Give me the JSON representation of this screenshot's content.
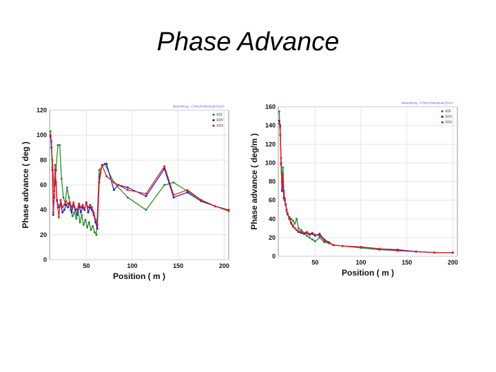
{
  "slide": {
    "title": "Phase Advance"
  },
  "chart_data": [
    {
      "type": "line",
      "id": "left",
      "title": "",
      "header_note": "Beam/Ring - CTRL(FODO)Lat(?)ACF",
      "xlabel": "Position ( m )",
      "ylabel": "Phase advance ( deg )",
      "xlim": [
        10,
        205
      ],
      "ylim": [
        0,
        120
      ],
      "xticks": [
        50,
        100,
        150,
        200
      ],
      "yticks": [
        0,
        20,
        40,
        60,
        80,
        100,
        120
      ],
      "grid": true,
      "legend_position": "top-right",
      "series": [
        {
          "name": "XDI",
          "color": "#2a8a2a",
          "x": [
            11,
            13,
            15,
            17,
            19,
            21,
            23,
            25,
            27,
            29,
            31,
            33,
            35,
            37,
            39,
            41,
            43,
            45,
            47,
            49,
            51,
            53,
            55,
            57,
            59,
            61,
            64,
            70,
            80,
            95,
            115,
            135,
            145,
            160,
            175,
            190,
            205
          ],
          "y": [
            103,
            80,
            55,
            72,
            92,
            92,
            65,
            50,
            45,
            58,
            50,
            40,
            35,
            38,
            33,
            40,
            30,
            36,
            28,
            32,
            26,
            30,
            24,
            27,
            22,
            20,
            72,
            77,
            62,
            50,
            40,
            60,
            62,
            55,
            48,
            43,
            39
          ]
        },
        {
          "name": "XDV",
          "color": "#2020c0",
          "x": [
            11,
            12,
            13,
            14,
            15,
            16,
            17,
            18,
            19,
            20,
            22,
            24,
            26,
            28,
            30,
            32,
            34,
            36,
            38,
            40,
            42,
            44,
            46,
            48,
            50,
            52,
            54,
            56,
            58,
            60,
            62,
            64,
            67,
            72,
            80,
            85,
            95,
            115,
            135,
            145,
            160,
            175,
            190,
            205
          ],
          "y": [
            99,
            90,
            72,
            36,
            50,
            72,
            62,
            48,
            44,
            42,
            45,
            38,
            40,
            44,
            42,
            46,
            38,
            44,
            40,
            36,
            44,
            38,
            42,
            40,
            46,
            38,
            42,
            40,
            36,
            30,
            25,
            62,
            76,
            77,
            56,
            60,
            58,
            51,
            73,
            50,
            54,
            47,
            43,
            40
          ]
        },
        {
          "name": "XDX",
          "color": "#e02020",
          "x": [
            11,
            12,
            13,
            14,
            15,
            16,
            17,
            18,
            19,
            20,
            22,
            24,
            26,
            28,
            30,
            32,
            34,
            36,
            38,
            40,
            42,
            44,
            46,
            48,
            50,
            52,
            54,
            56,
            58,
            60,
            62,
            64,
            67,
            72,
            80,
            85,
            95,
            115,
            135,
            145,
            160,
            175,
            190,
            205
          ],
          "y": [
            100,
            95,
            74,
            38,
            52,
            76,
            60,
            47,
            42,
            34,
            48,
            42,
            44,
            47,
            45,
            46,
            42,
            46,
            41,
            40,
            45,
            42,
            44,
            41,
            45,
            42,
            44,
            42,
            38,
            32,
            28,
            66,
            76,
            67,
            62,
            60,
            56,
            53,
            75,
            52,
            56,
            48,
            43,
            40
          ]
        }
      ]
    },
    {
      "type": "line",
      "id": "right",
      "title": "",
      "header_note": "Beam/Ring - CTRL(FODO)Lat(?)ACF",
      "xlabel": "Position ( m )",
      "ylabel": "Phase advance ( deg/m )",
      "xlim": [
        10,
        205
      ],
      "ylim": [
        0,
        160
      ],
      "xticks": [
        50,
        100,
        150,
        200
      ],
      "yticks": [
        0,
        20,
        40,
        60,
        80,
        100,
        120,
        140,
        160
      ],
      "grid": true,
      "legend_position": "top-right",
      "series": [
        {
          "name": "XDI",
          "color": "#2a8a2a",
          "x": [
            11,
            12,
            13,
            14,
            15,
            16,
            17,
            18,
            19,
            20,
            22,
            24,
            26,
            28,
            30,
            32,
            35,
            38,
            41,
            44,
            47,
            50,
            55,
            60,
            65,
            70,
            80,
            100,
            120,
            140,
            160,
            180,
            200
          ],
          "y": [
            155,
            130,
            105,
            80,
            95,
            70,
            60,
            55,
            48,
            45,
            42,
            40,
            38,
            35,
            40,
            30,
            28,
            25,
            22,
            20,
            18,
            16,
            20,
            15,
            14,
            12,
            11,
            9,
            7,
            6,
            5,
            4,
            4
          ]
        },
        {
          "name": "XDV",
          "color": "#2020c0",
          "x": [
            11,
            12,
            13,
            14,
            15,
            16,
            17,
            18,
            19,
            20,
            22,
            24,
            26,
            28,
            30,
            32,
            35,
            38,
            41,
            44,
            47,
            50,
            55,
            60,
            65,
            70,
            80,
            100,
            120,
            140,
            160,
            180,
            200
          ],
          "y": [
            145,
            140,
            100,
            70,
            80,
            62,
            60,
            55,
            50,
            45,
            40,
            35,
            32,
            30,
            28,
            26,
            25,
            24,
            25,
            23,
            24,
            22,
            24,
            18,
            15,
            12,
            11,
            10,
            8,
            7,
            5,
            4,
            4
          ]
        },
        {
          "name": "XDX",
          "color": "#e02020",
          "x": [
            11,
            12,
            13,
            14,
            15,
            16,
            17,
            18,
            19,
            20,
            22,
            24,
            26,
            28,
            30,
            32,
            35,
            38,
            41,
            44,
            47,
            50,
            55,
            60,
            65,
            70,
            80,
            100,
            120,
            140,
            160,
            180,
            200
          ],
          "y": [
            142,
            138,
            98,
            72,
            88,
            68,
            62,
            56,
            50,
            46,
            41,
            36,
            33,
            30,
            28,
            27,
            26,
            25,
            26,
            24,
            25,
            23,
            22,
            17,
            14,
            12,
            11,
            10,
            8,
            6,
            5,
            4,
            4
          ]
        }
      ]
    }
  ]
}
